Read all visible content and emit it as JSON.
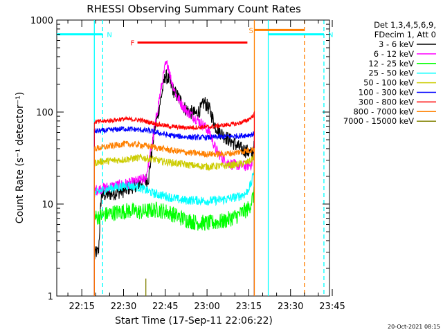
{
  "chart_data": {
    "type": "line",
    "title": "RHESSI Observing Summary Count Rates",
    "xlabel": "Start Time (17-Sep-11 22:06:22)",
    "ylabel": "Count Rate (s⁻¹ detector⁻¹)",
    "yscale": "log",
    "ylim": [
      1,
      1000
    ],
    "xlim_min": [
      0,
      98
    ],
    "x_ticks": [
      {
        "min": 9,
        "label": "22:15"
      },
      {
        "min": 24,
        "label": "22:30"
      },
      {
        "min": 39,
        "label": "22:45"
      },
      {
        "min": 54,
        "label": "23:00"
      },
      {
        "min": 69,
        "label": "23:15"
      },
      {
        "min": 84,
        "label": "23:30"
      },
      {
        "min": 99,
        "label": "23:45"
      }
    ],
    "y_ticks": [
      {
        "value": 1,
        "label": "1"
      },
      {
        "value": 10,
        "label": "10"
      },
      {
        "value": 100,
        "label": "100"
      },
      {
        "value": 1000,
        "label": "1000"
      }
    ],
    "legend_header": [
      "Det 1,3,4,5,6,9,",
      "FDecim 1, Att 0"
    ],
    "legend_position": "top-right",
    "series": [
      {
        "name": "3 - 6 keV",
        "color": "#000000",
        "noise": 0.08,
        "points": [
          [
            13.5,
            2.6
          ],
          [
            14,
            3.0
          ],
          [
            15,
            3.0
          ],
          [
            16,
            12.5
          ],
          [
            20,
            13
          ],
          [
            24,
            14
          ],
          [
            30,
            17
          ],
          [
            33,
            19
          ],
          [
            35,
            60
          ],
          [
            37,
            120
          ],
          [
            39,
            250
          ],
          [
            40,
            230
          ],
          [
            42,
            170
          ],
          [
            44,
            140
          ],
          [
            46,
            110
          ],
          [
            48,
            100
          ],
          [
            50,
            95
          ],
          [
            52,
            110
          ],
          [
            53,
            130
          ],
          [
            55,
            105
          ],
          [
            57,
            70
          ],
          [
            60,
            55
          ],
          [
            62,
            50
          ],
          [
            64,
            45
          ],
          [
            66,
            40
          ],
          [
            68,
            38
          ],
          [
            70,
            35
          ],
          [
            71,
            42
          ]
        ]
      },
      {
        "name": "6 - 12 keV",
        "color": "#ff00ff",
        "noise": 0.06,
        "points": [
          [
            13.5,
            14
          ],
          [
            17,
            15
          ],
          [
            22,
            16
          ],
          [
            27,
            17
          ],
          [
            32,
            19
          ],
          [
            34,
            40
          ],
          [
            37,
            150
          ],
          [
            39,
            320
          ],
          [
            40,
            330
          ],
          [
            41,
            230
          ],
          [
            43,
            150
          ],
          [
            45,
            120
          ],
          [
            47,
            100
          ],
          [
            49,
            90
          ],
          [
            51,
            80
          ],
          [
            53,
            70
          ],
          [
            55,
            60
          ],
          [
            57,
            40
          ],
          [
            60,
            30
          ],
          [
            63,
            27
          ],
          [
            66,
            26
          ],
          [
            68,
            26
          ],
          [
            70,
            27
          ],
          [
            71,
            35
          ]
        ]
      },
      {
        "name": "12 - 25 keV",
        "color": "#00ff00",
        "noise": 0.09,
        "points": [
          [
            13.5,
            7
          ],
          [
            16,
            7.5
          ],
          [
            20,
            8
          ],
          [
            26,
            8.5
          ],
          [
            30,
            8.2
          ],
          [
            36,
            8.7
          ],
          [
            40,
            8.2
          ],
          [
            45,
            7
          ],
          [
            50,
            6.3
          ],
          [
            55,
            6.2
          ],
          [
            60,
            6.5
          ],
          [
            65,
            7.5
          ],
          [
            69,
            9
          ],
          [
            71,
            13
          ]
        ]
      },
      {
        "name": "25 - 50 keV",
        "color": "#00ffff",
        "noise": 0.05,
        "points": [
          [
            13.5,
            13
          ],
          [
            16,
            14
          ],
          [
            20,
            15
          ],
          [
            26,
            16
          ],
          [
            30,
            15
          ],
          [
            35,
            13
          ],
          [
            40,
            12
          ],
          [
            45,
            11
          ],
          [
            50,
            11
          ],
          [
            55,
            10.8
          ],
          [
            60,
            11.2
          ],
          [
            65,
            12
          ],
          [
            68,
            13
          ],
          [
            70,
            17
          ],
          [
            71,
            25
          ]
        ]
      },
      {
        "name": "50 - 100 keV",
        "color": "#cccc00",
        "noise": 0.04,
        "points": [
          [
            13.5,
            28
          ],
          [
            16,
            29
          ],
          [
            22,
            30
          ],
          [
            26,
            31
          ],
          [
            30,
            32
          ],
          [
            34,
            31
          ],
          [
            38,
            29
          ],
          [
            42,
            28
          ],
          [
            46,
            27
          ],
          [
            50,
            26
          ],
          [
            55,
            25.5
          ],
          [
            60,
            26
          ],
          [
            65,
            27
          ],
          [
            68,
            28
          ],
          [
            70,
            30
          ],
          [
            71,
            34
          ]
        ]
      },
      {
        "name": "100 - 300 keV",
        "color": "#0000ff",
        "noise": 0.03,
        "points": [
          [
            13.5,
            62
          ],
          [
            18,
            63
          ],
          [
            24,
            66
          ],
          [
            30,
            64
          ],
          [
            34,
            62
          ],
          [
            40,
            56
          ],
          [
            45,
            54
          ],
          [
            50,
            53
          ],
          [
            55,
            53
          ],
          [
            60,
            54
          ],
          [
            65,
            55
          ],
          [
            68,
            56
          ],
          [
            70,
            57
          ],
          [
            71,
            58
          ]
        ]
      },
      {
        "name": "300 - 800 keV",
        "color": "#ff0000",
        "noise": 0.025,
        "points": [
          [
            13.5,
            78
          ],
          [
            18,
            80
          ],
          [
            24,
            84
          ],
          [
            30,
            82
          ],
          [
            36,
            74
          ],
          [
            40,
            70
          ],
          [
            45,
            68
          ],
          [
            50,
            68
          ],
          [
            55,
            69
          ],
          [
            60,
            72
          ],
          [
            65,
            75
          ],
          [
            68,
            80
          ],
          [
            70,
            88
          ],
          [
            71,
            95
          ]
        ]
      },
      {
        "name": "800 - 7000 keV",
        "color": "#ff8000",
        "noise": 0.035,
        "points": [
          [
            13.5,
            40
          ],
          [
            18,
            42
          ],
          [
            24,
            45
          ],
          [
            30,
            44
          ],
          [
            36,
            41
          ],
          [
            42,
            38
          ],
          [
            48,
            36
          ],
          [
            54,
            35
          ],
          [
            60,
            35
          ],
          [
            64,
            36
          ],
          [
            68,
            38
          ],
          [
            70,
            39
          ],
          [
            71,
            40
          ]
        ]
      },
      {
        "name": "7000 - 15000 keV",
        "color": "#808000",
        "noise": 0,
        "points": [
          [
            32,
            1.0
          ],
          [
            32,
            1.55
          ]
        ]
      }
    ],
    "annotations": [
      {
        "label": "N",
        "color": "#00ffff",
        "level": 700,
        "x_start": 0,
        "x_end": 16.5
      },
      {
        "label": "N",
        "color": "#00ffff",
        "level": 700,
        "x_start": 76,
        "x_end": 96
      },
      {
        "label": "F",
        "color": "#ff0000",
        "level": 570,
        "x_start": 29,
        "x_end": 68.5
      },
      {
        "label": "S",
        "color": "#ff8000",
        "level": 780,
        "x_start": 71,
        "x_end": 89
      }
    ],
    "vertical_lines": [
      {
        "x": 13.5,
        "color": "#00ffff",
        "style": "solid"
      },
      {
        "x": 16.5,
        "color": "#00ffff",
        "style": "dashed"
      },
      {
        "x": 71,
        "color": "#ff8000",
        "style": "solid"
      },
      {
        "x": 76,
        "color": "#00ffff",
        "style": "solid"
      },
      {
        "x": 89,
        "color": "#ff8000",
        "style": "dashed"
      },
      {
        "x": 96,
        "color": "#00ffff",
        "style": "dashed"
      }
    ]
  },
  "footer_timestamp": "20-Oct-2021 08:15"
}
